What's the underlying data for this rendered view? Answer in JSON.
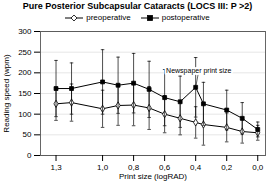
{
  "chart_data": {
    "type": "line",
    "title": "Pure Posterior Subcapsular Cataracts (LOCS III: P >2)",
    "xlabel": "Print size (logRAD)",
    "ylabel": "Reading speed (wpm)",
    "x": [
      1.3,
      1.2,
      1.0,
      0.9,
      0.8,
      0.7,
      0.6,
      0.5,
      0.4,
      0.35,
      0.2,
      0.1,
      0.0
    ],
    "series": [
      {
        "name": "preoperative",
        "color": "black",
        "marker": "open-diamond",
        "line_style": "solid",
        "values": [
          125,
          128,
          113,
          121,
          122,
          115,
          100,
          90,
          80,
          75,
          68,
          58,
          55
        ],
        "errors": [
          40,
          45,
          45,
          48,
          50,
          52,
          45,
          40,
          38,
          50,
          35,
          28,
          18
        ]
      },
      {
        "name": "postoperative",
        "color": "black",
        "marker": "square",
        "line_style": "solid",
        "values": [
          162,
          162,
          178,
          170,
          175,
          160,
          140,
          130,
          165,
          125,
          110,
          90,
          63
        ],
        "errors": [
          68,
          62,
          78,
          68,
          72,
          68,
          68,
          62,
          72,
          52,
          48,
          38,
          18
        ]
      }
    ],
    "xlim": [
      1.4,
      -0.05
    ],
    "xticks": [
      {
        "value": 1.3,
        "label": "1,3"
      },
      {
        "value": 1.0,
        "label": "1,0"
      },
      {
        "value": 0.8,
        "label": "0,8"
      },
      {
        "value": 0.6,
        "label": "0,6"
      },
      {
        "value": 0.4,
        "label": "0,4"
      },
      {
        "value": 0.2,
        "label": "0,2"
      },
      {
        "value": 0.0,
        "label": "0,0"
      }
    ],
    "ylim": [
      0,
      300
    ],
    "yticks": [
      0,
      50,
      100,
      150,
      200,
      250,
      300
    ],
    "grid": "y",
    "legend": "top",
    "annotations": [
      {
        "text": "Newspaper print size",
        "x": 0.38,
        "y": 205,
        "arrow_x": 0.4,
        "arrow_y": 165
      }
    ]
  }
}
